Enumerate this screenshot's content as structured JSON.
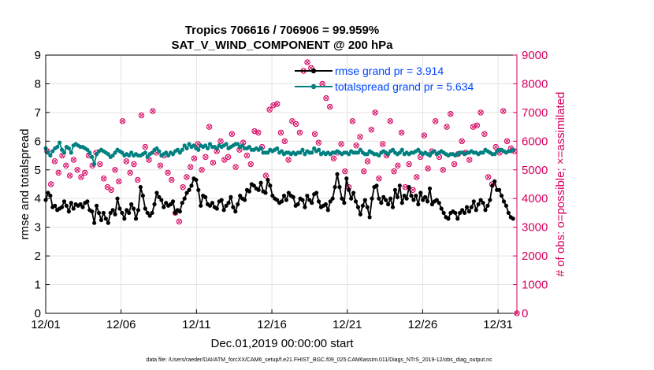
{
  "chart_data": {
    "type": "line",
    "title_line1": "Tropics 706616 / 706906 = 99.959%",
    "title_line2": "SAT_V_WIND_COMPONENT @ 200 hPa",
    "xlabel": "Dec.01,2019 00:00:00 start",
    "ylabel_left": "rmse and totalspread",
    "ylabel_right": "# of obs: o=possible; ×=assimilated",
    "footnote": "data file: /Users/raeder/DAI/ATM_forcXX/CAM6_setup/f.e21.FHIST_BGC.f09_025.CAM6assim.011/Diags_NTrS_2019-12/obs_diag_output.nc",
    "x_range": [
      0,
      31.25
    ],
    "ylim_left": [
      0,
      9
    ],
    "ylim_right": [
      0,
      9000
    ],
    "x_ticks": [
      0,
      5,
      10,
      15,
      20,
      25,
      30
    ],
    "x_tick_labels": [
      "12/01",
      "12/06",
      "12/11",
      "12/16",
      "12/21",
      "12/26",
      "12/31"
    ],
    "y_ticks_left": [
      "0",
      "1",
      "2",
      "3",
      "4",
      "5",
      "6",
      "7",
      "8",
      "9"
    ],
    "y_ticks_right": [
      "0",
      "1000",
      "2000",
      "3000",
      "4000",
      "5000",
      "6000",
      "7000",
      "8000",
      "9000"
    ],
    "grid": true,
    "colors": {
      "rmse": "#000000",
      "totalspread": "#008080",
      "obs": "#d6005f",
      "legend_text": "#0046ff",
      "axis": "#000000"
    },
    "legend": [
      {
        "label": "rmse grand pr = 3.914",
        "series": "rmse"
      },
      {
        "label": "totalspread grand pr = 5.634",
        "series": "totalspread"
      }
    ],
    "series": [
      {
        "name": "rmse",
        "values": [
          3.95,
          4.2,
          4.1,
          3.7,
          3.75,
          3.6,
          3.65,
          3.7,
          3.9,
          3.75,
          3.55,
          3.85,
          3.65,
          3.8,
          3.75,
          3.8,
          3.7,
          3.85,
          3.9,
          3.6,
          3.55,
          3.15,
          3.75,
          3.5,
          3.25,
          3.5,
          3.3,
          3.15,
          3.5,
          3.6,
          3.45,
          4.0,
          3.65,
          3.5,
          3.3,
          3.6,
          3.5,
          3.8,
          3.65,
          3.3,
          3.6,
          4.4,
          4.1,
          3.65,
          3.5,
          3.4,
          3.5,
          3.8,
          4.2,
          4.05,
          3.95,
          3.7,
          3.85,
          3.75,
          3.8,
          3.9,
          3.5,
          3.6,
          3.55,
          3.85,
          4.0,
          4.2,
          4.3,
          4.45,
          4.7,
          4.65,
          4.3,
          3.75,
          4.1,
          4.05,
          3.8,
          3.75,
          3.85,
          3.7,
          3.65,
          3.9,
          3.95,
          3.6,
          3.75,
          3.85,
          4.05,
          3.7,
          3.55,
          3.8,
          4.1,
          4.0,
          3.95,
          4.3,
          4.25,
          4.5,
          4.45,
          4.35,
          4.3,
          4.55,
          4.25,
          4.2,
          4.65,
          4.45,
          4.1,
          4.0,
          3.95,
          3.85,
          3.9,
          4.1,
          3.95,
          4.2,
          4.1,
          4.05,
          3.75,
          3.8,
          4.0,
          3.95,
          3.7,
          4.1,
          3.95,
          3.85,
          4.15,
          4.2,
          3.9,
          3.7,
          3.75,
          3.8,
          3.6,
          3.9,
          4.0,
          4.4,
          4.85,
          4.4,
          4.0,
          3.85,
          4.7,
          4.3,
          4.0,
          4.2,
          3.9,
          3.7,
          3.45,
          3.75,
          3.95,
          3.7,
          3.35,
          4.0,
          4.4,
          4.45,
          4.0,
          3.85,
          4.05,
          3.95,
          3.8,
          4.0,
          3.7,
          4.3,
          4.05,
          4.45,
          3.85,
          4.1,
          4.0,
          4.4,
          4.1,
          3.95,
          4.1,
          3.8,
          4.2,
          3.95,
          4.05,
          3.9,
          4.35,
          3.8,
          3.9,
          3.95,
          3.85,
          3.65,
          3.5,
          3.35,
          3.3,
          3.5,
          3.55,
          3.5,
          3.3,
          3.5,
          3.6,
          3.5,
          3.7,
          3.55,
          3.7,
          3.9,
          3.6,
          3.8,
          3.95,
          3.85,
          3.6,
          3.75,
          3.95,
          4.45,
          4.6,
          4.3,
          4.3,
          4.1,
          3.9,
          3.75,
          3.5,
          3.35,
          3.3
        ]
      },
      {
        "name": "totalspread",
        "values": [
          5.75,
          5.6,
          5.5,
          5.65,
          5.75,
          5.8,
          5.95,
          5.7,
          5.6,
          5.8,
          5.75,
          5.6,
          5.85,
          5.9,
          5.85,
          5.8,
          5.8,
          5.75,
          5.7,
          5.6,
          5.45,
          5.2,
          5.55,
          5.65,
          5.7,
          5.65,
          5.6,
          5.55,
          5.45,
          5.5,
          5.6,
          5.7,
          5.65,
          5.6,
          5.5,
          5.55,
          5.5,
          5.6,
          5.5,
          5.55,
          5.5,
          5.5,
          5.55,
          5.6,
          5.45,
          5.55,
          5.6,
          5.7,
          5.75,
          5.65,
          5.5,
          5.55,
          5.6,
          5.5,
          5.6,
          5.55,
          5.65,
          5.7,
          5.6,
          5.7,
          5.85,
          5.75,
          5.9,
          5.8,
          5.85,
          5.75,
          5.7,
          5.85,
          5.8,
          5.85,
          5.75,
          5.9,
          5.8,
          5.8,
          5.75,
          5.85,
          5.8,
          5.85,
          5.9,
          5.75,
          5.8,
          5.85,
          5.9,
          5.9,
          5.8,
          5.85,
          5.75,
          5.75,
          5.8,
          5.7,
          5.7,
          5.75,
          5.7,
          5.75,
          5.6,
          5.6,
          5.6,
          5.7,
          5.65,
          5.7,
          5.75,
          5.6,
          5.65,
          5.55,
          5.6,
          5.6,
          5.55,
          5.6,
          5.55,
          5.6,
          5.6,
          5.7,
          5.55,
          5.65,
          5.6,
          5.6,
          5.75,
          5.65,
          5.7,
          5.55,
          5.6,
          5.55,
          5.6,
          5.55,
          5.6,
          5.6,
          5.65,
          5.6,
          5.55,
          5.6,
          5.6,
          5.55,
          5.65,
          5.6,
          5.6,
          5.6,
          5.7,
          5.6,
          5.55,
          5.55,
          5.65,
          5.6,
          5.55,
          5.55,
          5.5,
          5.6,
          5.65,
          5.6,
          5.55,
          5.65,
          5.7,
          5.6,
          5.55,
          5.6,
          5.7,
          5.55,
          5.6,
          5.55,
          5.6,
          5.6,
          5.65,
          5.7,
          5.6,
          5.55,
          5.6,
          5.55,
          5.5,
          5.6,
          5.65,
          5.55,
          5.6,
          5.65,
          5.6,
          5.55,
          5.5,
          5.55,
          5.55,
          5.5,
          5.55,
          5.6,
          5.6,
          5.55,
          5.6,
          5.6,
          5.65,
          5.6,
          5.6,
          5.55,
          5.6,
          5.6,
          5.7,
          5.65,
          5.6,
          5.55,
          5.55,
          5.65,
          5.7,
          5.7,
          5.65,
          5.6,
          5.65,
          5.65,
          5.7
        ]
      },
      {
        "name": "obs",
        "axis": "right",
        "points": [
          [
            0.1,
            5650
          ],
          [
            0.35,
            4500
          ],
          [
            0.6,
            5300
          ],
          [
            0.85,
            4900
          ],
          [
            1.1,
            5500
          ],
          [
            1.35,
            5150
          ],
          [
            1.6,
            4800
          ],
          [
            1.85,
            5350
          ],
          [
            2.1,
            5000
          ],
          [
            2.35,
            4750
          ],
          [
            2.6,
            4900
          ],
          [
            2.85,
            5500
          ],
          [
            3.1,
            5150
          ],
          [
            3.35,
            5600
          ],
          [
            3.6,
            5200
          ],
          [
            3.85,
            4700
          ],
          [
            4.1,
            4400
          ],
          [
            4.35,
            4300
          ],
          [
            4.6,
            5000
          ],
          [
            4.85,
            4600
          ],
          [
            5.1,
            6700
          ],
          [
            5.35,
            5300
          ],
          [
            5.6,
            4900
          ],
          [
            5.85,
            5200
          ],
          [
            6.1,
            4650
          ],
          [
            6.35,
            6900
          ],
          [
            6.6,
            5800
          ],
          [
            6.85,
            5350
          ],
          [
            7.1,
            7050
          ],
          [
            7.35,
            5600
          ],
          [
            7.6,
            5150
          ],
          [
            7.85,
            5500
          ],
          [
            8.1,
            4900
          ],
          [
            8.35,
            4650
          ],
          [
            8.6,
            3500
          ],
          [
            8.85,
            3200
          ],
          [
            9.1,
            4400
          ],
          [
            9.35,
            4750
          ],
          [
            9.6,
            5100
          ],
          [
            9.85,
            5400
          ],
          [
            10.1,
            5900
          ],
          [
            10.35,
            5000
          ],
          [
            10.6,
            5450
          ],
          [
            10.85,
            6500
          ],
          [
            11.1,
            5250
          ],
          [
            11.35,
            5650
          ],
          [
            11.6,
            6000
          ],
          [
            11.85,
            5350
          ],
          [
            12.1,
            5450
          ],
          [
            12.35,
            6250
          ],
          [
            12.6,
            5100
          ],
          [
            12.85,
            5700
          ],
          [
            13.1,
            5950
          ],
          [
            13.35,
            5500
          ],
          [
            13.6,
            5200
          ],
          [
            13.85,
            6350
          ],
          [
            14.1,
            6300
          ],
          [
            14.35,
            5800
          ],
          [
            14.6,
            4800
          ],
          [
            14.85,
            7100
          ],
          [
            15.1,
            7250
          ],
          [
            15.35,
            7300
          ],
          [
            15.6,
            6300
          ],
          [
            15.85,
            6000
          ],
          [
            16.1,
            5350
          ],
          [
            16.35,
            6700
          ],
          [
            16.6,
            6600
          ],
          [
            16.85,
            6300
          ],
          [
            17.1,
            8450
          ],
          [
            17.35,
            8750
          ],
          [
            17.6,
            8550
          ],
          [
            17.85,
            6250
          ],
          [
            18.1,
            5950
          ],
          [
            18.35,
            8000
          ],
          [
            18.6,
            7500
          ],
          [
            18.85,
            7200
          ],
          [
            19.1,
            5400
          ],
          [
            19.35,
            5600
          ],
          [
            19.6,
            5900
          ],
          [
            19.85,
            4950
          ],
          [
            20.1,
            4400
          ],
          [
            20.35,
            6700
          ],
          [
            20.6,
            5850
          ],
          [
            20.85,
            6150
          ],
          [
            21.1,
            4950
          ],
          [
            21.35,
            5300
          ],
          [
            21.6,
            6400
          ],
          [
            21.85,
            7000
          ],
          [
            22.1,
            4700
          ],
          [
            22.35,
            5900
          ],
          [
            22.6,
            5500
          ],
          [
            22.85,
            6700
          ],
          [
            23.1,
            4950
          ],
          [
            23.35,
            5150
          ],
          [
            23.6,
            6300
          ],
          [
            23.85,
            4400
          ],
          [
            24.1,
            5200
          ],
          [
            24.35,
            4300
          ],
          [
            24.6,
            4750
          ],
          [
            24.85,
            5450
          ],
          [
            25.1,
            6200
          ],
          [
            25.35,
            5050
          ],
          [
            25.6,
            5650
          ],
          [
            25.85,
            6700
          ],
          [
            26.1,
            5450
          ],
          [
            26.35,
            5000
          ],
          [
            26.6,
            6500
          ],
          [
            26.85,
            6950
          ],
          [
            27.1,
            5200
          ],
          [
            27.35,
            5550
          ],
          [
            27.6,
            6000
          ],
          [
            27.85,
            5600
          ],
          [
            28.1,
            5350
          ],
          [
            28.35,
            6500
          ],
          [
            28.6,
            6550
          ],
          [
            28.85,
            7000
          ],
          [
            29.1,
            6250
          ],
          [
            29.35,
            4750
          ],
          [
            29.6,
            4500
          ],
          [
            29.85,
            5800
          ],
          [
            30.1,
            5600
          ],
          [
            30.35,
            7050
          ],
          [
            30.6,
            6000
          ],
          [
            30.85,
            5750
          ],
          [
            31.1,
            5650
          ],
          [
            31.25,
            0
          ]
        ]
      }
    ]
  }
}
